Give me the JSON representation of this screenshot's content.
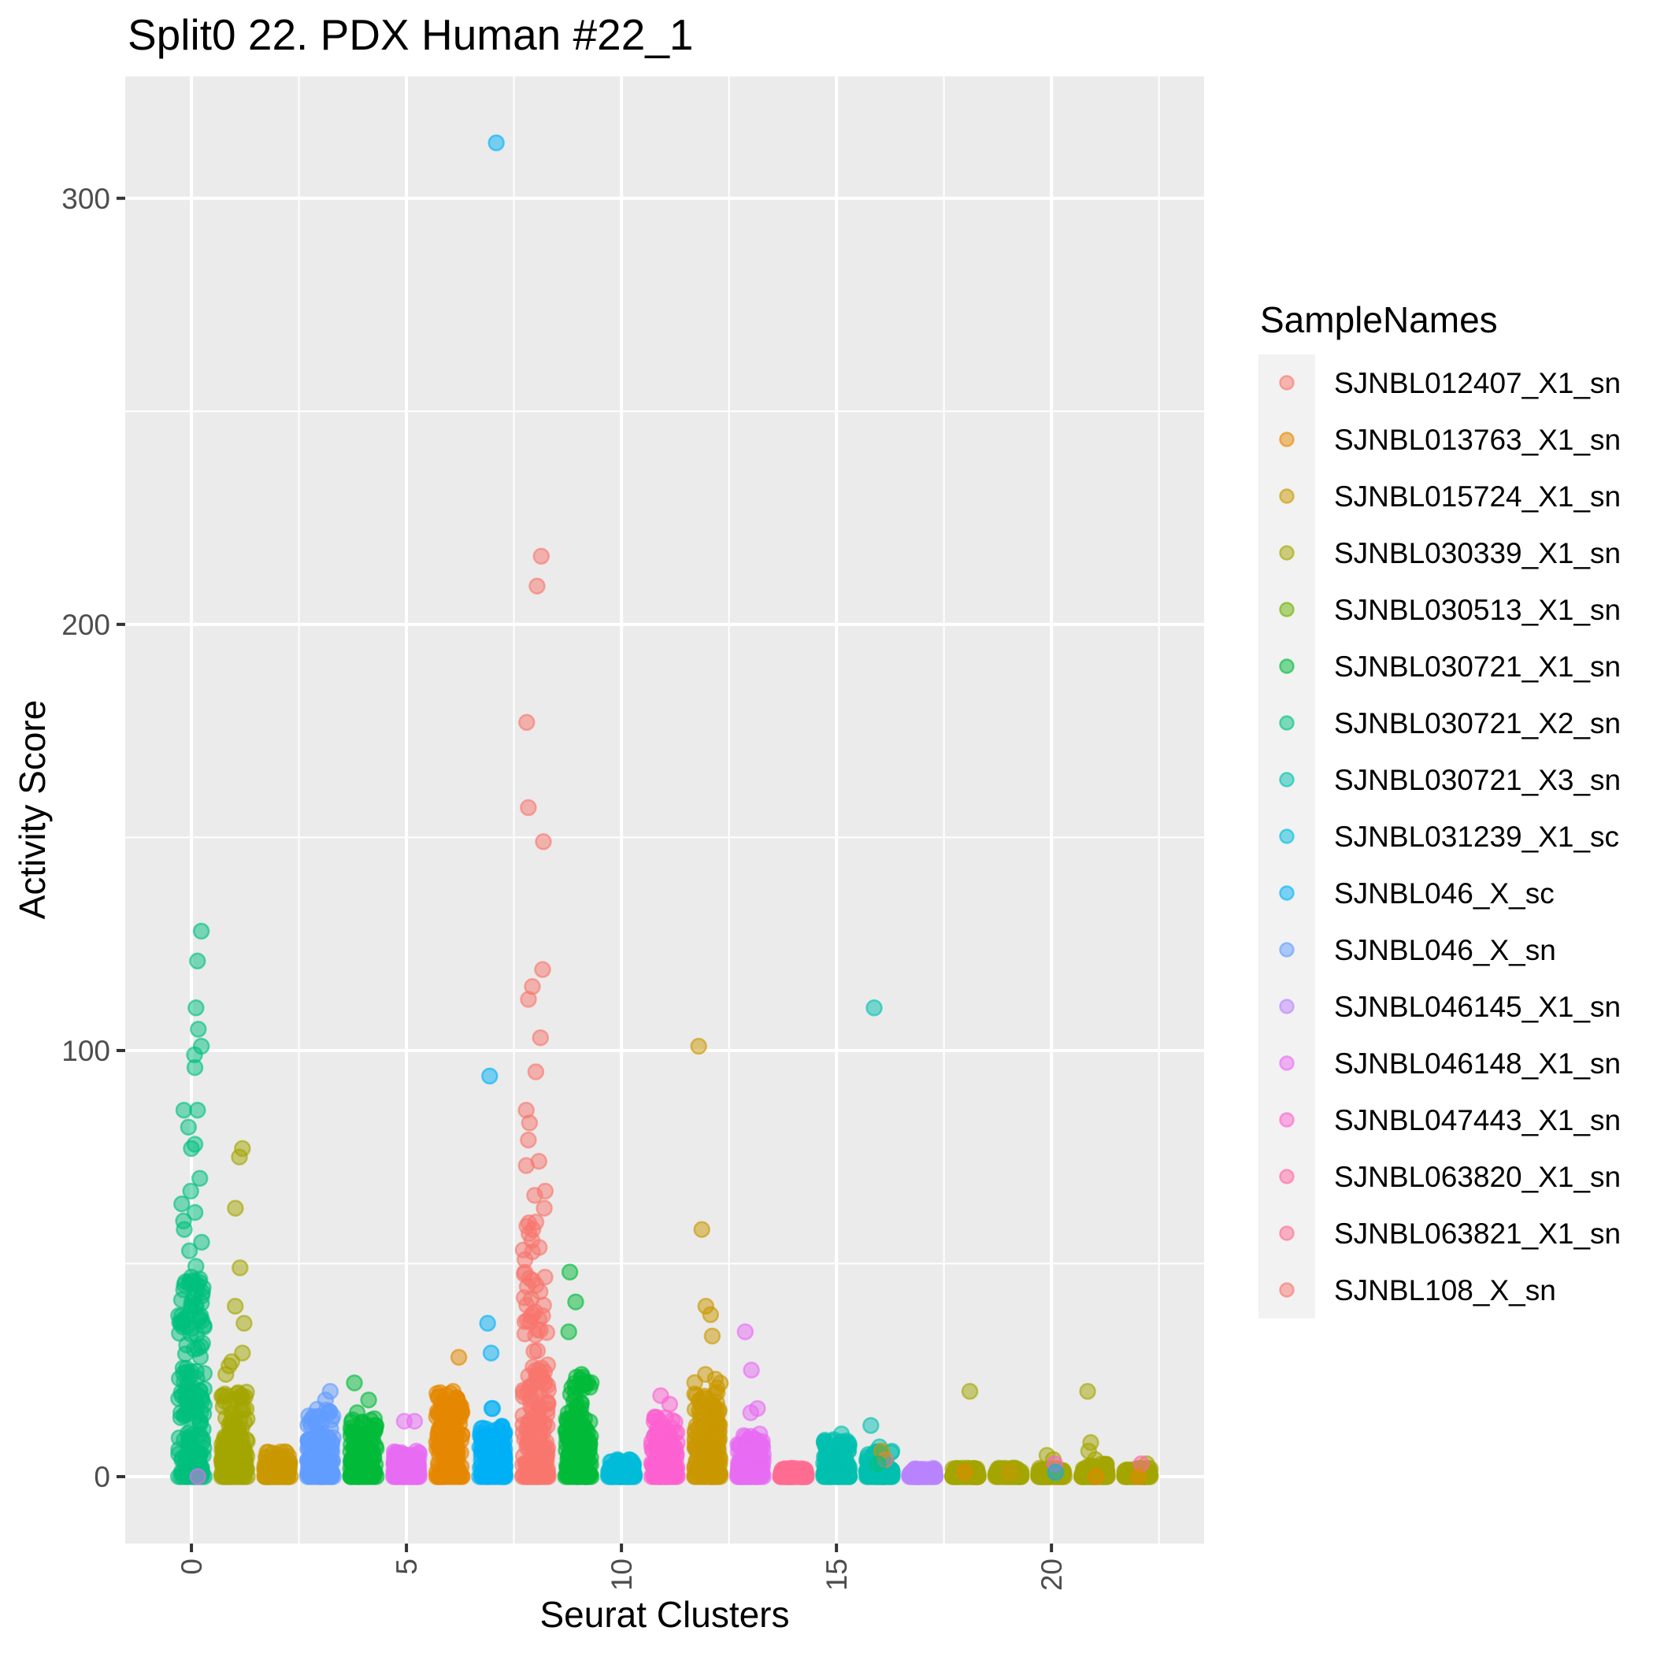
{
  "chart_data": {
    "type": "scatter",
    "title": "Split0 22. PDX Human #22_1",
    "xlabel": "Seurat Clusters",
    "ylabel": "Activity Score",
    "xlim": [
      -1.54,
      23.55
    ],
    "ylim": [
      -15.7,
      328.6
    ],
    "x_ticks": [
      0,
      5,
      10,
      15,
      20
    ],
    "x_tick_labels": [
      "0",
      "5",
      "10",
      "15",
      "20"
    ],
    "y_ticks": [
      0,
      100,
      200,
      300
    ],
    "y_tick_labels": [
      "0",
      "100",
      "200",
      "300"
    ],
    "x_minor_grid": [
      2.5,
      7.5,
      12.5,
      17.5,
      22.5
    ],
    "y_minor_grid": [
      50,
      150,
      250
    ],
    "grid": true,
    "jitter_width": 0.3,
    "point_alpha": 0.5,
    "legend": {
      "title": "SampleNames",
      "position": "right",
      "entries": [
        {
          "label": "SJNBL012407_X1_sn",
          "color": "#F8766D"
        },
        {
          "label": "SJNBL013763_X1_sn",
          "color": "#E58700"
        },
        {
          "label": "SJNBL015724_X1_sn",
          "color": "#C99800"
        },
        {
          "label": "SJNBL030339_X1_sn",
          "color": "#A3A500"
        },
        {
          "label": "SJNBL030513_X1_sn",
          "color": "#6BB100"
        },
        {
          "label": "SJNBL030721_X1_sn",
          "color": "#00BA38"
        },
        {
          "label": "SJNBL030721_X2_sn",
          "color": "#00BF7D"
        },
        {
          "label": "SJNBL030721_X3_sn",
          "color": "#00C0AF"
        },
        {
          "label": "SJNBL031239_X1_sc",
          "color": "#00BCD8"
        },
        {
          "label": "SJNBL046_X_sc",
          "color": "#00B0F6"
        },
        {
          "label": "SJNBL046_X_sn",
          "color": "#619CFF"
        },
        {
          "label": "SJNBL046145_X1_sn",
          "color": "#B983FF"
        },
        {
          "label": "SJNBL046148_X1_sn",
          "color": "#E76BF3"
        },
        {
          "label": "SJNBL047443_X1_sn",
          "color": "#FD61D1"
        },
        {
          "label": "SJNBL063820_X1_sn",
          "color": "#FF67A4"
        },
        {
          "label": "SJNBL063821_X1_sn",
          "color": "#FF6C91"
        },
        {
          "label": "SJNBL108_X_sn",
          "color": "#F8766D"
        }
      ]
    },
    "clusters": [
      {
        "cluster": 0,
        "sample": 6,
        "bulk_max": 50,
        "dense_max": 35,
        "outliers": [
          128,
          121,
          110,
          105,
          101,
          99,
          96,
          86,
          86,
          82,
          78,
          77,
          70,
          67,
          64,
          62,
          60,
          58,
          55,
          53
        ]
      },
      {
        "cluster": 1,
        "sample": 3,
        "bulk_max": 20,
        "dense_max": 10,
        "outliers": [
          77,
          75,
          63,
          49,
          40,
          36,
          29,
          27,
          26,
          24
        ]
      },
      {
        "cluster": 2,
        "sample": 2,
        "bulk_max": 6,
        "dense_max": 3,
        "outliers": []
      },
      {
        "cluster": 3,
        "sample": 10,
        "bulk_max": 16,
        "dense_max": 8,
        "outliers": [
          20,
          18
        ]
      },
      {
        "cluster": 4,
        "sample": 5,
        "bulk_max": 14,
        "dense_max": 6,
        "outliers": [
          22,
          18,
          15
        ]
      },
      {
        "cluster": 5,
        "sample": 12,
        "bulk_max": 6,
        "dense_max": 4,
        "outliers": [
          13,
          13
        ]
      },
      {
        "cluster": 6,
        "sample": 1,
        "bulk_max": 20,
        "dense_max": 15,
        "outliers": [
          28,
          20
        ]
      },
      {
        "cluster": 7,
        "sample": 9,
        "bulk_max": 12,
        "dense_max": 7,
        "outliers": [
          313,
          94,
          36,
          29,
          16,
          16
        ]
      },
      {
        "cluster": 8,
        "sample": 0,
        "bulk_max": 60,
        "dense_max": 25,
        "outliers": [
          216,
          209,
          177,
          157,
          149,
          119,
          115,
          112,
          103,
          95,
          86,
          83,
          79,
          74,
          73,
          67,
          66,
          63,
          58,
          57
        ]
      },
      {
        "cluster": 9,
        "sample": 5,
        "bulk_max": 24,
        "dense_max": 12,
        "outliers": [
          48,
          41,
          34,
          24
        ]
      },
      {
        "cluster": 10,
        "sample": 8,
        "bulk_max": 4,
        "dense_max": 2,
        "outliers": [
          4
        ]
      },
      {
        "cluster": 11,
        "sample": 13,
        "bulk_max": 14,
        "dense_max": 7,
        "outliers": [
          19,
          17,
          14
        ]
      },
      {
        "cluster": 12,
        "sample": 2,
        "bulk_max": 24,
        "dense_max": 12,
        "outliers": [
          101,
          58,
          40,
          38,
          33,
          24
        ]
      },
      {
        "cluster": 13,
        "sample": 12,
        "bulk_max": 10,
        "dense_max": 5,
        "outliers": [
          34,
          25,
          16,
          15,
          10
        ]
      },
      {
        "cluster": 14,
        "sample": 15,
        "bulk_max": 2,
        "dense_max": 1,
        "outliers": []
      },
      {
        "cluster": 15,
        "sample": 7,
        "bulk_max": 9,
        "dense_max": 6,
        "outliers": [
          10
        ]
      },
      {
        "cluster": 16,
        "sample": 7,
        "bulk_max": 6,
        "dense_max": 2,
        "outliers": [
          110,
          12,
          7,
          5
        ]
      },
      {
        "cluster": 17,
        "sample": 11,
        "bulk_max": 2,
        "dense_max": 1,
        "outliers": []
      },
      {
        "cluster": 18,
        "sample": 3,
        "bulk_max": 2,
        "dense_max": 1,
        "outliers": [
          20
        ]
      },
      {
        "cluster": 19,
        "sample": 3,
        "bulk_max": 2,
        "dense_max": 1,
        "outliers": [
          2
        ]
      },
      {
        "cluster": 20,
        "sample": 3,
        "bulk_max": 2,
        "dense_max": 1,
        "outliers": [
          5,
          4
        ]
      },
      {
        "cluster": 21,
        "sample": 3,
        "bulk_max": 3,
        "dense_max": 1,
        "outliers": [
          20,
          8,
          6,
          4
        ]
      },
      {
        "cluster": 22,
        "sample": 3,
        "bulk_max": 2,
        "dense_max": 1,
        "outliers": [
          3
        ]
      }
    ]
  }
}
